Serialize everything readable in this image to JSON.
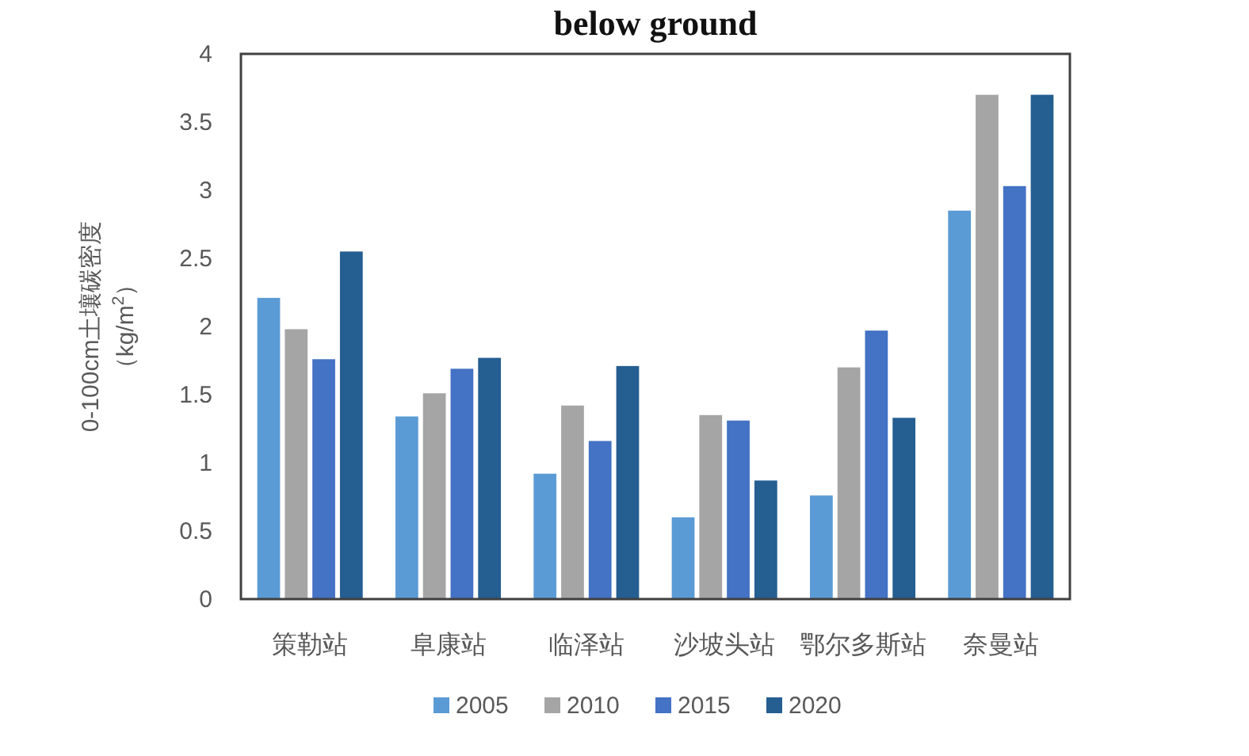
{
  "chart_data": {
    "type": "bar",
    "title": "below ground",
    "ylabel": "0-100cm土壤碳密度（kg/m$^{2}$）",
    "categories": [
      "策勒站",
      "阜康站",
      "临泽站",
      "沙坡头站",
      "鄂尔多斯站",
      "奈曼站"
    ],
    "series": [
      {
        "name": "2005",
        "color": "#5b9bd5",
        "values": [
          2.21,
          1.34,
          0.92,
          0.6,
          0.76,
          2.85
        ]
      },
      {
        "name": "2010",
        "color": "#a5a5a5",
        "values": [
          1.98,
          1.51,
          1.42,
          1.35,
          1.7,
          3.7
        ]
      },
      {
        "name": "2015",
        "color": "#4472c4",
        "values": [
          1.76,
          1.69,
          1.16,
          1.31,
          1.97,
          3.03
        ]
      },
      {
        "name": "2020",
        "color": "#255e91",
        "values": [
          2.55,
          1.77,
          1.71,
          0.87,
          1.33,
          3.7
        ]
      }
    ],
    "ylim": [
      0,
      4
    ],
    "yticks": [
      0,
      0.5,
      1,
      1.5,
      2,
      2.5,
      3,
      3.5,
      4
    ],
    "grid": false,
    "legend": "bottom"
  }
}
